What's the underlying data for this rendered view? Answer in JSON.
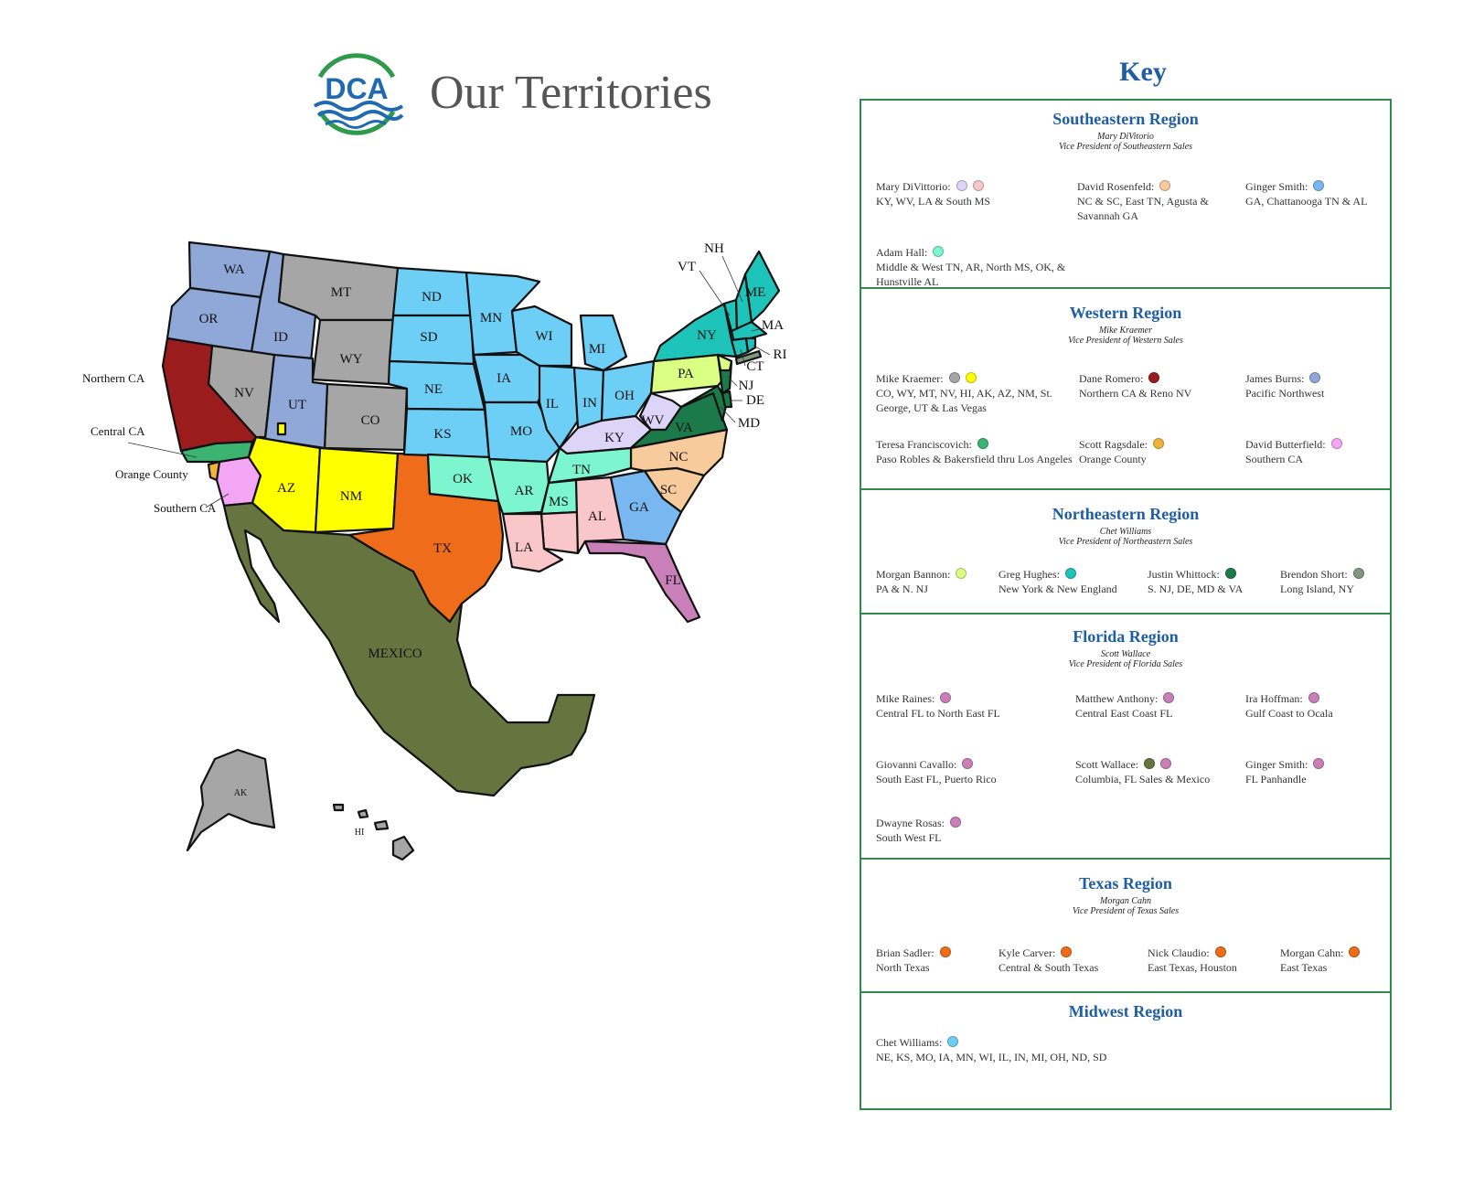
{
  "header": {
    "logo_text": "DCA",
    "title": "Our Territories"
  },
  "map": {
    "states": {
      "WA": "WA",
      "OR": "OR",
      "ID": "ID",
      "MT": "MT",
      "WY": "WY",
      "NV": "NV",
      "UT": "UT",
      "CO": "CO",
      "AZ": "AZ",
      "NM": "NM",
      "TX": "TX",
      "ND": "ND",
      "SD": "SD",
      "NE": "NE",
      "KS": "KS",
      "OK": "OK",
      "MN": "MN",
      "IA": "IA",
      "MO": "MO",
      "AR": "AR",
      "LA": "LA",
      "WI": "WI",
      "IL": "IL",
      "MI": "MI",
      "IN": "IN",
      "OH": "OH",
      "KY": "KY",
      "TN": "TN",
      "MS": "MS",
      "AL": "AL",
      "GA": "GA",
      "FL": "FL",
      "SC": "SC",
      "NC": "NC",
      "VA": "VA",
      "WV": "WV",
      "PA": "PA",
      "NY": "NY",
      "VT": "VT",
      "NH": "NH",
      "ME": "ME",
      "MA": "MA",
      "RI": "RI",
      "CT": "CT",
      "NJ": "NJ",
      "DE": "DE",
      "MD": "MD",
      "AK": "AK",
      "HI": "HI",
      "MEXICO": "MEXICO"
    },
    "callouts": {
      "northern_ca": "Northern CA",
      "central_ca": "Central CA",
      "orange_county": "Orange County",
      "southern_ca": "Southern CA"
    },
    "colors": {
      "western_blue": "#8fa8d8",
      "gray": "#a6a6a6",
      "midwest": "#6ecff6",
      "northern_ca": "#9b1c1c",
      "central_ca": "#3cb371",
      "southern_ca": "#f3a6f3",
      "yellow": "#ffff00",
      "orange": "#ef6c1a",
      "mint": "#7df5cf",
      "pink": "#f9c6c9",
      "ga": "#78b7f0",
      "fl": "#c97fb8",
      "peach": "#f7cb9b",
      "lavender": "#ddd5f7",
      "va": "#1c7a4a",
      "pa": "#dbff82",
      "teal": "#1ec3b9",
      "mexico": "#66753f"
    }
  },
  "key": {
    "title": "Key",
    "regions": [
      {
        "name": "Southeastern Region",
        "vp_name": "Mary DiVitorio",
        "vp_title": "Vice President of Southeastern Sales",
        "people": [
          {
            "name": "Mary DiVittorio:",
            "dots": [
              "#ddd5f7",
              "#f9c6c9"
            ],
            "territory": "KY, WV, LA & South MS"
          },
          {
            "name": "David Rosenfeld:",
            "dots": [
              "#f7cb9b"
            ],
            "territory": "NC & SC, East TN, Agusta & Savannah GA"
          },
          {
            "name": "Ginger Smith:",
            "dots": [
              "#78b7f0"
            ],
            "territory": "GA, Chattanooga TN & AL"
          },
          {
            "name": "Adam Hall:",
            "dots": [
              "#7df5cf"
            ],
            "territory": "Middle & West TN, AR, North MS, OK, & Hunstville AL"
          }
        ]
      },
      {
        "name": "Western Region",
        "vp_name": "Mike Kraemer",
        "vp_title": "Vice President of Western Sales",
        "people": [
          {
            "name": "Mike Kraemer:",
            "dots": [
              "#a6a6a6",
              "#ffff00"
            ],
            "territory": "CO, WY, MT, NV, HI, AK, AZ, NM, St. George, UT & Las Vegas"
          },
          {
            "name": "Dane Romero:",
            "dots": [
              "#9b1c1c"
            ],
            "territory": "Northern CA & Reno NV"
          },
          {
            "name": "James Burns:",
            "dots": [
              "#8fa8d8"
            ],
            "territory": "Pacific Northwest"
          },
          {
            "name": "Teresa Franciscovich:",
            "dots": [
              "#3cb371"
            ],
            "territory": "Paso Robles & Bakersfield thru Los Angeles"
          },
          {
            "name": "Scott Ragsdale:",
            "dots": [
              "#f0b33a"
            ],
            "territory": "Orange County"
          },
          {
            "name": "David Butterfield:",
            "dots": [
              "#f3a6f3"
            ],
            "territory": "Southern CA"
          }
        ]
      },
      {
        "name": "Northeastern Region",
        "vp_name": "Chet Williams",
        "vp_title": "Vice President of  Northeastern Sales",
        "people": [
          {
            "name": "Morgan Bannon:",
            "dots": [
              "#dbff82"
            ],
            "territory": "PA & N. NJ"
          },
          {
            "name": "Greg Hughes:",
            "dots": [
              "#1ec3b9"
            ],
            "territory": "New York & New England"
          },
          {
            "name": "Justin Whittock:",
            "dots": [
              "#1c7a4a"
            ],
            "territory": "S. NJ, DE, MD & VA"
          },
          {
            "name": "Brendon Short:",
            "dots": [
              "#7f9a7a"
            ],
            "territory": "Long Island, NY"
          }
        ]
      },
      {
        "name": "Florida Region",
        "vp_name": "Scott Wallace",
        "vp_title": "Vice President of Florida Sales",
        "people": [
          {
            "name": "Mike Raines:",
            "dots": [
              "#c97fb8"
            ],
            "territory": "Central FL to North East FL"
          },
          {
            "name": "Matthew Anthony:",
            "dots": [
              "#c97fb8"
            ],
            "territory": "Central East Coast FL"
          },
          {
            "name": "Ira Hoffman:",
            "dots": [
              "#c97fb8"
            ],
            "territory": "Gulf Coast to Ocala"
          },
          {
            "name": "Giovanni Cavallo:",
            "dots": [
              "#c97fb8"
            ],
            "territory": "South East FL, Puerto Rico"
          },
          {
            "name": "Scott Wallace:",
            "dots": [
              "#66753f",
              "#c97fb8"
            ],
            "territory": "Columbia, FL Sales & Mexico"
          },
          {
            "name": "Ginger Smith:",
            "dots": [
              "#c97fb8"
            ],
            "territory": "FL Panhandle"
          },
          {
            "name": "Dwayne Rosas:",
            "dots": [
              "#c97fb8"
            ],
            "territory": "South West FL"
          }
        ]
      },
      {
        "name": "Texas Region",
        "vp_name": "Morgan Cahn",
        "vp_title": "Vice President of Texas Sales",
        "people": [
          {
            "name": "Brian Sadler:",
            "dots": [
              "#ef6c1a"
            ],
            "territory": "North Texas"
          },
          {
            "name": "Kyle Carver:",
            "dots": [
              "#ef6c1a"
            ],
            "territory": "Central & South Texas"
          },
          {
            "name": "Nick Claudio:",
            "dots": [
              "#ef6c1a"
            ],
            "territory": "East Texas, Houston"
          },
          {
            "name": "Morgan Cahn:",
            "dots": [
              "#ef6c1a"
            ],
            "territory": "East Texas"
          }
        ]
      },
      {
        "name": "Midwest Region",
        "vp_name": "",
        "vp_title": "",
        "people": [
          {
            "name": "Chet Williams:",
            "dots": [
              "#6ecff6"
            ],
            "territory": "NE, KS, MO, IA, MN, WI, IL, IN, MI, OH, ND, SD"
          }
        ]
      }
    ]
  }
}
